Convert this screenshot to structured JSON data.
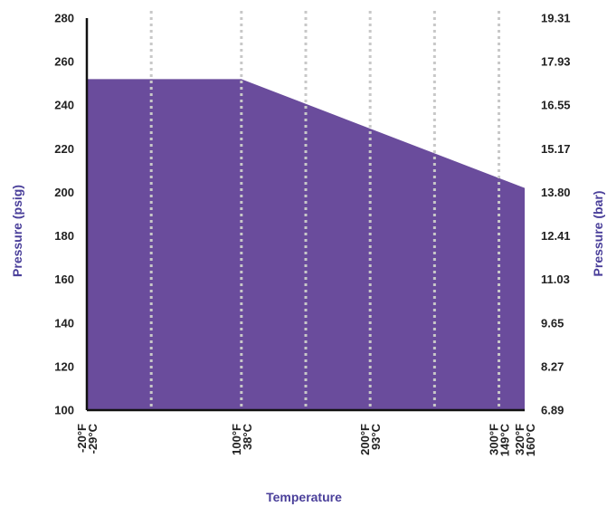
{
  "chart_data": {
    "type": "area",
    "xlabel": "Temperature",
    "ylabel": "Pressure (psig)",
    "ylabel_right": "Pressure (bar)",
    "xlim": [
      -20,
      320
    ],
    "ylim": [
      100,
      280
    ],
    "x": [
      -20,
      100,
      320
    ],
    "values": [
      252,
      252,
      202
    ],
    "yticks": [
      280,
      260,
      240,
      220,
      200,
      180,
      160,
      140,
      120,
      100
    ],
    "yticks_right": [
      "19.31",
      "17.93",
      "16.55",
      "15.17",
      "13.80",
      "12.41",
      "11.03",
      "9.65",
      "8.27",
      "6.89"
    ],
    "xticks": [
      {
        "value": -20,
        "f": "-20°F",
        "c": "-29°C"
      },
      {
        "value": 100,
        "f": "100°F",
        "c": "38°C"
      },
      {
        "value": 200,
        "f": "200°F",
        "c": "93°C"
      },
      {
        "value": 300,
        "f": "300°F",
        "c": "149°C"
      },
      {
        "value": 320,
        "f": "320°F",
        "c": "160°C"
      }
    ],
    "vertical_gridlines": [
      30,
      100,
      150,
      200,
      250,
      300
    ],
    "grid": "vertical-dotted",
    "colors": {
      "fill": "#6a4c9c",
      "grid": "#c8c8c8",
      "axis": "#111111",
      "title": "#4a3f9a"
    }
  }
}
